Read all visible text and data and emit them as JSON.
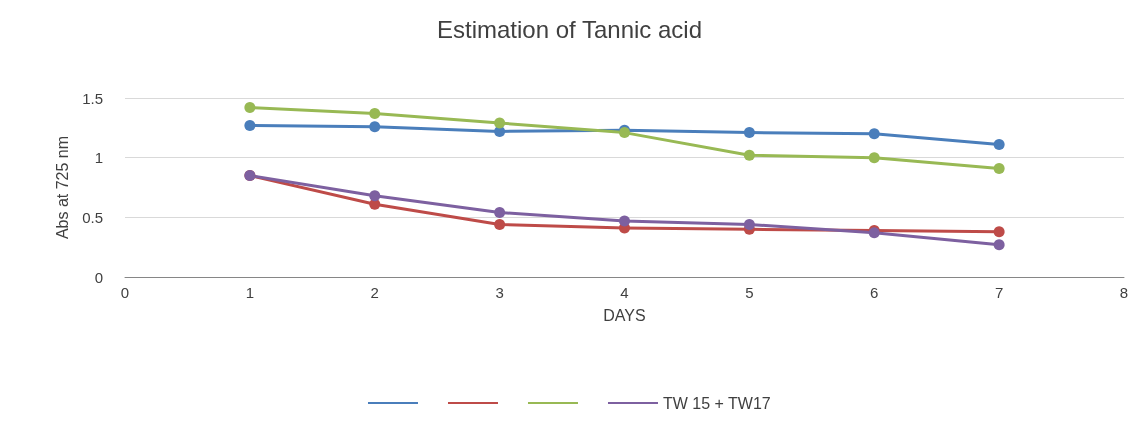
{
  "chart_data": {
    "type": "line",
    "title": "Estimation of Tannic acid",
    "xlabel": "DAYS",
    "ylabel": "Abs at 725 nm",
    "x": [
      1,
      2,
      3,
      4,
      5,
      6,
      7
    ],
    "series": [
      {
        "color": "#4a7ebb",
        "values": [
          1.27,
          1.26,
          1.22,
          1.23,
          1.21,
          1.2,
          1.11
        ]
      },
      {
        "color": "#be4b48",
        "values": [
          0.85,
          0.61,
          0.44,
          0.41,
          0.4,
          0.39,
          0.38
        ]
      },
      {
        "color": "#98b954",
        "values": [
          1.42,
          1.37,
          1.29,
          1.21,
          1.02,
          1.0,
          0.91
        ]
      },
      {
        "name": "TW 15 + TW17",
        "color": "#7d60a0",
        "values": [
          0.85,
          0.68,
          0.54,
          0.47,
          0.44,
          0.37,
          0.27
        ]
      }
    ],
    "xlim": [
      0,
      8
    ],
    "xticks": [
      0,
      1,
      2,
      3,
      4,
      5,
      6,
      7,
      8
    ],
    "ylim": [
      0,
      1.5
    ],
    "yticks": [
      0,
      0.5,
      1,
      1.5
    ],
    "grid": "y",
    "legend": "bottom",
    "marker": "circle",
    "line_style": "solid"
  }
}
